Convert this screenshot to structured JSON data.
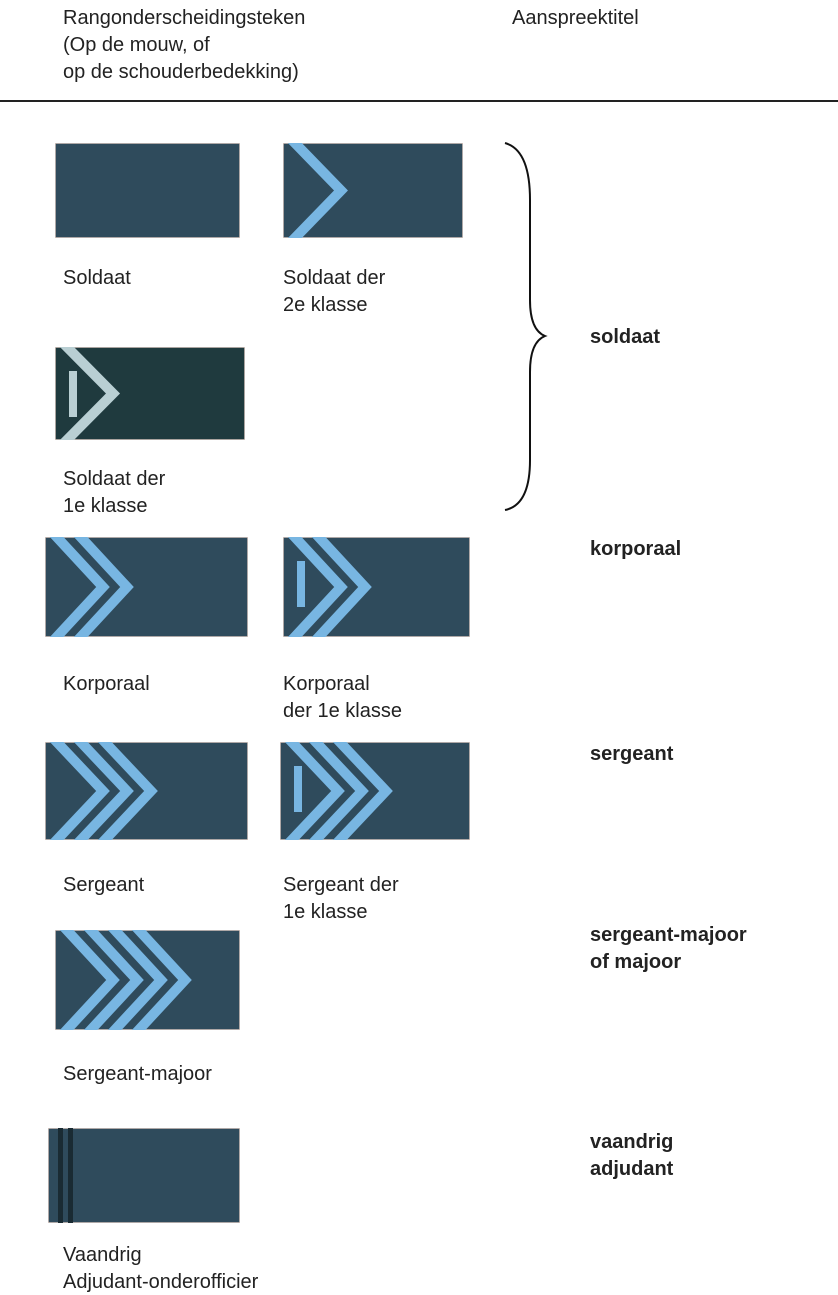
{
  "header": {
    "insignia_column": [
      "Rangonderscheidingsteken",
      "(Op de mouw, of",
      "op de schouderbedekking)"
    ],
    "title_column": "Aanspreektitel"
  },
  "insignia": [
    {
      "label": [
        "Soldaat"
      ]
    },
    {
      "label": [
        "Soldaat der",
        "2e klasse"
      ]
    },
    {
      "label": [
        "Soldaat der",
        "1e klasse"
      ]
    },
    {
      "label": [
        "Korporaal"
      ]
    },
    {
      "label": [
        "Korporaal",
        "der 1e klasse"
      ]
    },
    {
      "label": [
        "Sergeant"
      ]
    },
    {
      "label": [
        "Sergeant der",
        "1e klasse"
      ]
    },
    {
      "label": [
        "Sergeant-majoor"
      ]
    },
    {
      "label": [
        "Vaandrig",
        "Adjudant-onderofficier"
      ]
    }
  ],
  "titles": [
    {
      "lines": [
        "soldaat"
      ]
    },
    {
      "lines": [
        "korporaal"
      ]
    },
    {
      "lines": [
        "sergeant"
      ]
    },
    {
      "lines": [
        "sergeant-majoor",
        "of majoor"
      ]
    },
    {
      "lines": [
        "vaandrig",
        "adjudant"
      ]
    }
  ]
}
